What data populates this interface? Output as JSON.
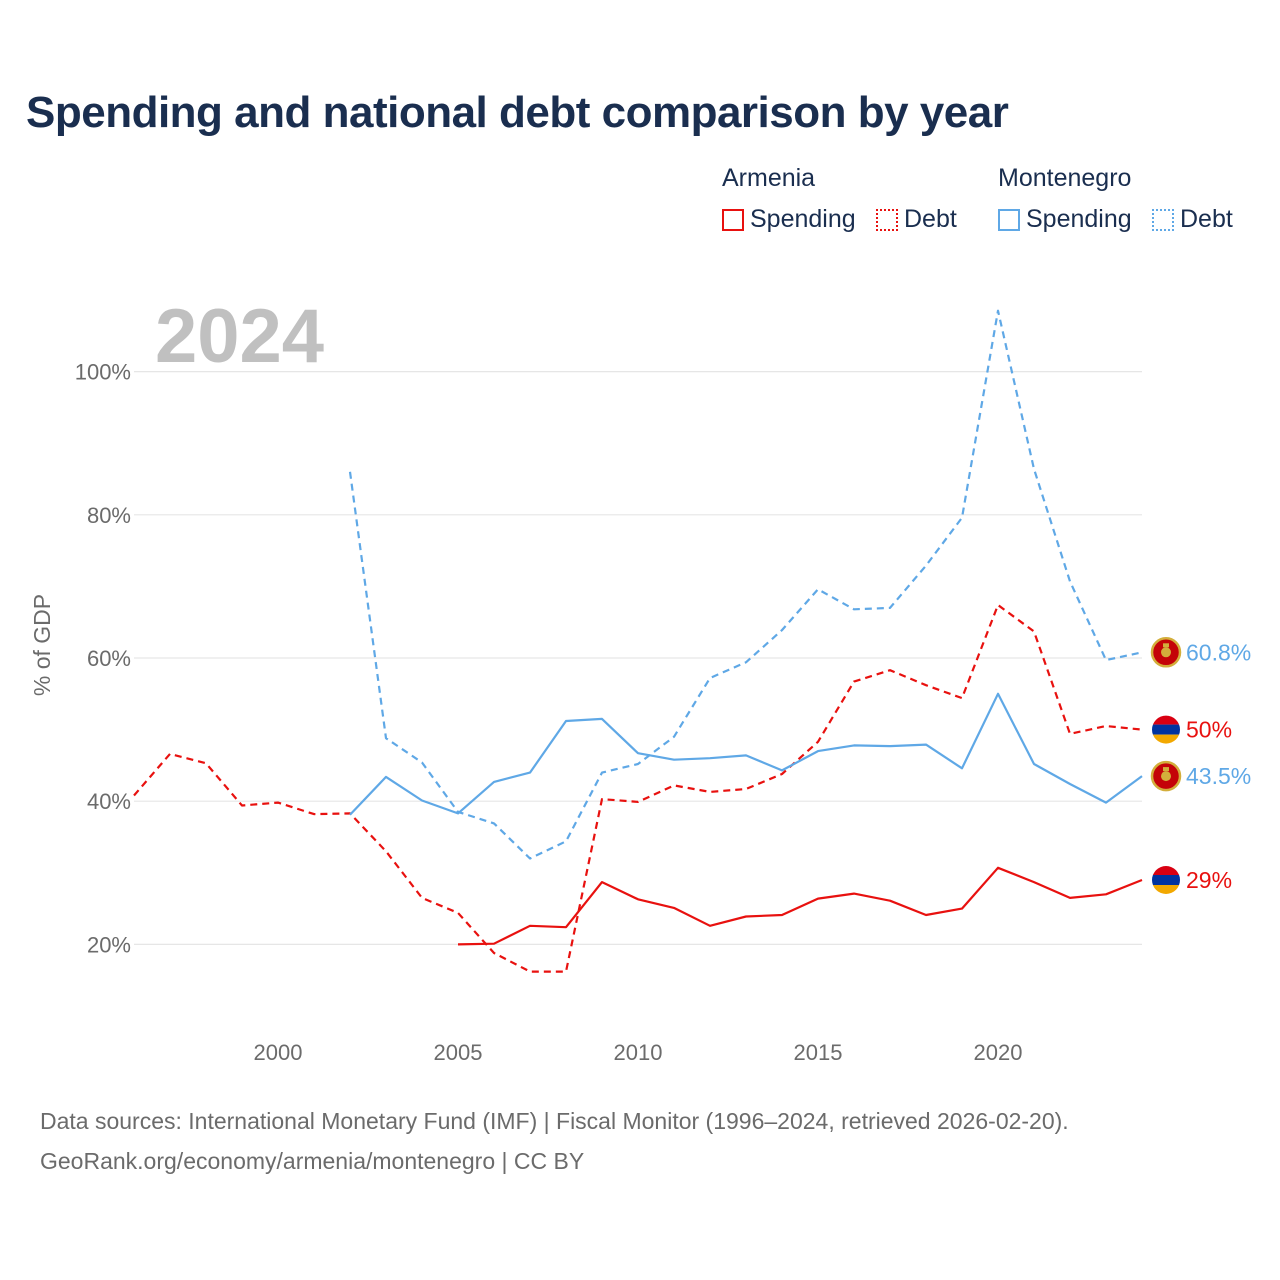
{
  "title": "Spending and national debt comparison by year",
  "legend": {
    "groups": [
      {
        "name": "Armenia",
        "color": "#e8110f",
        "items": [
          {
            "label": "Spending",
            "style": "solid"
          },
          {
            "label": "Debt",
            "style": "dotted"
          }
        ]
      },
      {
        "name": "Montenegro",
        "color": "#5fa8e6",
        "items": [
          {
            "label": "Spending",
            "style": "solid"
          },
          {
            "label": "Debt",
            "style": "dotted"
          }
        ]
      }
    ]
  },
  "year_label": "2024",
  "source": {
    "line1": "Data sources: International Monetary Fund (IMF) | Fiscal Monitor (1996–2024, retrieved 2026-02-20).",
    "line2": "GeoRank.org/economy/armenia/montenegro | CC BY"
  },
  "chart_data": {
    "type": "line",
    "title": "Spending and national debt comparison by year",
    "xlabel": "",
    "ylabel": "% of GDP",
    "xlim": [
      1996,
      2024
    ],
    "ylim": [
      10,
      110
    ],
    "x_ticks": [
      2000,
      2005,
      2010,
      2015,
      2020
    ],
    "y_ticks": [
      20,
      40,
      60,
      80,
      100
    ],
    "y_tick_labels": [
      "20%",
      "40%",
      "60%",
      "80%",
      "100%"
    ],
    "grid": true,
    "series": [
      {
        "name": "Armenia Debt",
        "country": "Armenia",
        "measure": "Debt",
        "color": "#e8110f",
        "dashed": true,
        "x": [
          1996,
          1997,
          1998,
          1999,
          2000,
          2001,
          2002,
          2003,
          2004,
          2005,
          2006,
          2007,
          2008,
          2009,
          2010,
          2011,
          2012,
          2013,
          2014,
          2015,
          2016,
          2017,
          2018,
          2019,
          2020,
          2021,
          2022,
          2023,
          2024
        ],
        "values": [
          40.8,
          46.6,
          45.3,
          39.4,
          39.8,
          38.2,
          38.3,
          33.0,
          26.5,
          24.4,
          18.8,
          16.2,
          16.2,
          40.3,
          39.9,
          42.2,
          41.3,
          41.7,
          43.8,
          48.3,
          56.7,
          58.3,
          56.2,
          54.4,
          67.4,
          63.7,
          49.4,
          50.5,
          50.0
        ],
        "end_label": "50%"
      },
      {
        "name": "Armenia Spending",
        "country": "Armenia",
        "measure": "Spending",
        "color": "#e8110f",
        "dashed": false,
        "x": [
          2005,
          2006,
          2007,
          2008,
          2009,
          2010,
          2011,
          2012,
          2013,
          2014,
          2015,
          2016,
          2017,
          2018,
          2019,
          2020,
          2021,
          2022,
          2023,
          2024
        ],
        "values": [
          20.0,
          20.1,
          22.6,
          22.4,
          28.7,
          26.3,
          25.1,
          22.6,
          23.9,
          24.1,
          26.4,
          27.1,
          26.1,
          24.1,
          25.0,
          30.7,
          28.7,
          26.5,
          27.0,
          29.0
        ],
        "end_label": "29%"
      },
      {
        "name": "Montenegro Debt",
        "country": "Montenegro",
        "measure": "Debt",
        "color": "#5fa8e6",
        "dashed": true,
        "x": [
          2002,
          2003,
          2004,
          2005,
          2006,
          2007,
          2008,
          2009,
          2010,
          2011,
          2012,
          2013,
          2014,
          2015,
          2016,
          2017,
          2018,
          2019,
          2020,
          2021,
          2022,
          2023,
          2024
        ],
        "values": [
          86.0,
          48.8,
          45.4,
          38.5,
          36.9,
          32.0,
          34.4,
          44.0,
          45.2,
          49.0,
          57.2,
          59.4,
          63.9,
          69.6,
          66.8,
          67.0,
          72.9,
          79.6,
          108.5,
          86.4,
          70.7,
          59.7,
          60.8
        ],
        "end_label": "60.8%"
      },
      {
        "name": "Montenegro Spending",
        "country": "Montenegro",
        "measure": "Spending",
        "color": "#5fa8e6",
        "dashed": false,
        "x": [
          2002,
          2003,
          2004,
          2005,
          2006,
          2007,
          2008,
          2009,
          2010,
          2011,
          2012,
          2013,
          2014,
          2015,
          2016,
          2017,
          2018,
          2019,
          2020,
          2021,
          2022,
          2023,
          2024
        ],
        "values": [
          38.1,
          43.4,
          40.1,
          38.3,
          42.7,
          44.0,
          51.2,
          51.5,
          46.7,
          45.8,
          46.0,
          46.4,
          44.3,
          47.0,
          47.8,
          47.7,
          47.9,
          44.6,
          55.0,
          45.2,
          42.4,
          39.8,
          43.5
        ],
        "end_label": "43.5%"
      }
    ]
  }
}
